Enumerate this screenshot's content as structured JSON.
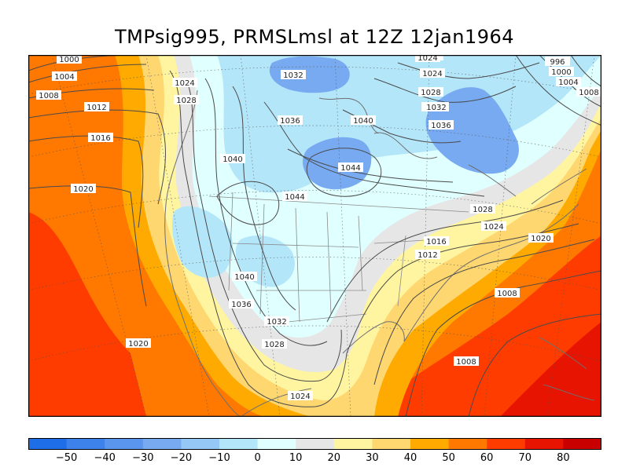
{
  "title": "TMPsig995, PRMSLmsl at 12Z  12jan1964",
  "colorbar": {
    "ticks": [
      "−50",
      "−40",
      "−30",
      "−20",
      "−10",
      "0",
      "10",
      "20",
      "30",
      "40",
      "50",
      "60",
      "70",
      "80"
    ],
    "colors": [
      "#1e6ee8",
      "#3c82ea",
      "#5a96ee",
      "#78aaf2",
      "#96c8f6",
      "#b4e6fa",
      "#e0ffff",
      "#e6e6e6",
      "#fff5a0",
      "#ffd770",
      "#ffaa00",
      "#ff7800",
      "#ff3c00",
      "#e61400",
      "#c80000"
    ]
  },
  "isobar_labels": [
    {
      "text": "1000"
    },
    {
      "text": "1004"
    },
    {
      "text": "1008"
    },
    {
      "text": "1012"
    },
    {
      "text": "1016"
    },
    {
      "text": "1020"
    },
    {
      "text": "1024"
    },
    {
      "text": "1028"
    },
    {
      "text": "1032"
    },
    {
      "text": "1036"
    },
    {
      "text": "1040"
    },
    {
      "text": "1040"
    },
    {
      "text": "1044"
    },
    {
      "text": "1044"
    },
    {
      "text": "1040"
    },
    {
      "text": "1036"
    },
    {
      "text": "1032"
    },
    {
      "text": "1028"
    },
    {
      "text": "1024"
    },
    {
      "text": "1020"
    },
    {
      "text": "1032"
    },
    {
      "text": "1028"
    },
    {
      "text": "1024"
    },
    {
      "text": "1028"
    },
    {
      "text": "1032"
    },
    {
      "text": "1036"
    },
    {
      "text": "1028"
    },
    {
      "text": "1024"
    },
    {
      "text": "1020"
    },
    {
      "text": "1016"
    },
    {
      "text": "1012"
    },
    {
      "text": "1008"
    },
    {
      "text": "1008"
    },
    {
      "text": "996"
    },
    {
      "text": "1000"
    },
    {
      "text": "1004"
    },
    {
      "text": "1008"
    },
    {
      "text": "1024"
    }
  ]
}
